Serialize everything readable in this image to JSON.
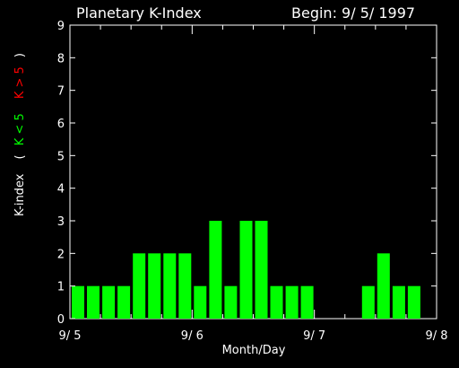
{
  "chart_data": {
    "type": "bar",
    "title": "Planetary K-Index",
    "subtitle": "Begin: 9/ 5/ 1997",
    "xlabel": "Month/Day",
    "ylabel": {
      "main": "K-index",
      "green_part": "K < 5",
      "red_part": "K > 5"
    },
    "ylim": [
      0,
      9
    ],
    "yticks": [
      "0",
      "1",
      "2",
      "3",
      "4",
      "5",
      "6",
      "7",
      "8",
      "9"
    ],
    "xticks": [
      "9/ 5",
      "9/ 6",
      "9/ 7",
      "9/ 8"
    ],
    "values": [
      1,
      1,
      1,
      1,
      2,
      2,
      2,
      2,
      1,
      3,
      1,
      3,
      3,
      1,
      1,
      1,
      null,
      null,
      null,
      1,
      2,
      1,
      1,
      null
    ],
    "colors": {
      "bar": "#00ff00",
      "axis": "#ffffff",
      "green": "#00ff00",
      "red": "#ff0000",
      "background": "#000000"
    }
  }
}
